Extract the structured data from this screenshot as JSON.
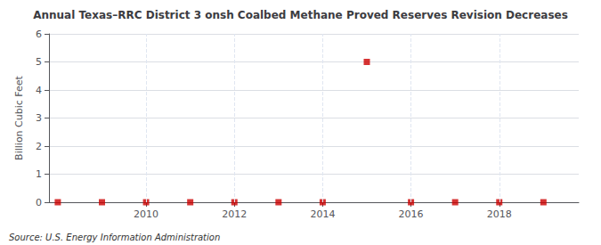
{
  "chart_data": {
    "type": "scatter",
    "title": "Annual Texas–RRC District 3 onsh Coalbed Methane Proved Reserves Revision Decreases",
    "ylabel": "Billion Cubic Feet",
    "annotations": [
      "Source: U.S. Energy Information Administration"
    ],
    "x": [
      2008,
      2009,
      2010,
      2011,
      2012,
      2013,
      2014,
      2015,
      2016,
      2017,
      2018,
      2019
    ],
    "values": [
      0.0,
      0.0,
      0.0,
      0.0,
      0.0,
      0.0,
      0.0,
      5.0,
      0.0,
      0.0,
      0.0,
      0.0
    ],
    "xlim": [
      2007.8,
      2019.8
    ],
    "xticks": [
      2010,
      2012,
      2014,
      2016,
      2018
    ],
    "ylim": [
      0,
      6
    ],
    "yticks": [
      0,
      1,
      2,
      3,
      4,
      5,
      6
    ],
    "color": "#cc0000",
    "marker": "square",
    "grid": true
  }
}
